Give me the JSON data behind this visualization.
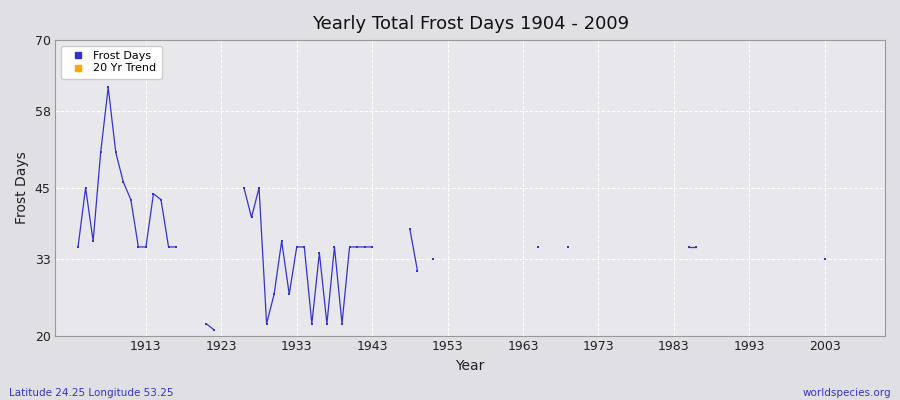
{
  "title": "Yearly Total Frost Days 1904 - 2009",
  "xlabel": "Year",
  "ylabel": "Frost Days",
  "subtitle_lat": "Latitude 24.25 Longitude 53.25",
  "watermark": "worldspecies.org",
  "ylim": [
    20,
    70
  ],
  "xlim": [
    1901,
    2011
  ],
  "yticks": [
    20,
    33,
    45,
    58,
    70
  ],
  "xticks": [
    1913,
    1923,
    1933,
    1943,
    1953,
    1963,
    1973,
    1983,
    1993,
    2003
  ],
  "segments": [
    {
      "years": [
        1904,
        1905,
        1906,
        1907,
        1908,
        1909,
        1910,
        1911,
        1912,
        1913,
        1914,
        1915,
        1916,
        1917
      ],
      "values": [
        35,
        45,
        36,
        51,
        62,
        51,
        46,
        43,
        35,
        35,
        44,
        43,
        35,
        35
      ]
    },
    {
      "years": [
        1921,
        1922
      ],
      "values": [
        22,
        21
      ]
    },
    {
      "years": [
        1926,
        1927,
        1928,
        1929,
        1930,
        1931,
        1932,
        1933,
        1934,
        1935,
        1936,
        1937,
        1938,
        1939,
        1940,
        1941,
        1942,
        1943
      ],
      "values": [
        45,
        40,
        45,
        22,
        27,
        36,
        27,
        35,
        35,
        22,
        34,
        22,
        35,
        22,
        35,
        35,
        35,
        35
      ]
    },
    {
      "years": [
        1948,
        1949
      ],
      "values": [
        38,
        31
      ]
    },
    {
      "years": [
        1951
      ],
      "values": [
        33
      ]
    },
    {
      "years": [
        1965
      ],
      "values": [
        35
      ]
    },
    {
      "years": [
        1969
      ],
      "values": [
        35
      ]
    },
    {
      "years": [
        1985,
        1986
      ],
      "values": [
        35,
        35
      ]
    },
    {
      "years": [
        2003
      ],
      "values": [
        33
      ]
    }
  ],
  "line_color": "#3333cc",
  "bg_color": "#e0e0e4",
  "plot_bg_color": "#e8e8ec",
  "grid_color": "#ffffff",
  "legend_frost_color": "#3333cc",
  "legend_trend_color": "#ffa500"
}
